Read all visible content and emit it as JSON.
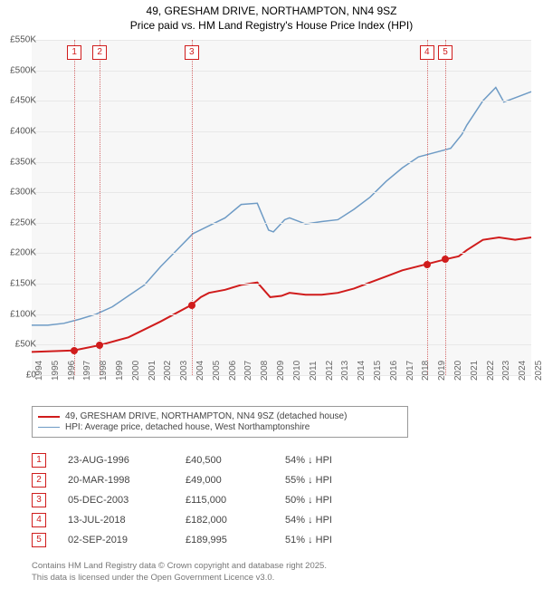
{
  "title_line1": "49, GRESHAM DRIVE, NORTHAMPTON, NN4 9SZ",
  "title_line2": "Price paid vs. HM Land Registry's House Price Index (HPI)",
  "chart": {
    "type": "line",
    "background": "#f7f7f7",
    "grid_color": "#e8e8e8",
    "ylim": [
      0,
      550000
    ],
    "ytick_step": 50000,
    "yticks_labels": [
      "£0",
      "£50K",
      "£100K",
      "£150K",
      "£200K",
      "£250K",
      "£300K",
      "£350K",
      "£400K",
      "£450K",
      "£500K",
      "£550K"
    ],
    "xlim": [
      1994,
      2025
    ],
    "xticks": [
      1994,
      1995,
      1996,
      1997,
      1998,
      1999,
      2000,
      2001,
      2002,
      2003,
      2004,
      2005,
      2006,
      2007,
      2008,
      2009,
      2010,
      2011,
      2012,
      2013,
      2014,
      2015,
      2016,
      2017,
      2018,
      2019,
      2020,
      2021,
      2022,
      2023,
      2024,
      2025
    ],
    "series": [
      {
        "name": "price_paid",
        "color": "#d01c1c",
        "width": 2,
        "points": [
          [
            1994,
            38000
          ],
          [
            1996.6,
            40500
          ],
          [
            1998.2,
            49000
          ],
          [
            2000,
            62000
          ],
          [
            2002,
            88000
          ],
          [
            2003.9,
            115000
          ],
          [
            2004.5,
            128000
          ],
          [
            2005,
            135000
          ],
          [
            2006,
            140000
          ],
          [
            2007,
            148000
          ],
          [
            2008,
            152000
          ],
          [
            2008.8,
            128000
          ],
          [
            2009.5,
            130000
          ],
          [
            2010,
            135000
          ],
          [
            2011,
            132000
          ],
          [
            2012,
            132000
          ],
          [
            2013,
            135000
          ],
          [
            2014,
            142000
          ],
          [
            2015,
            152000
          ],
          [
            2016,
            162000
          ],
          [
            2017,
            172000
          ],
          [
            2018.5,
            182000
          ],
          [
            2019.67,
            189995
          ],
          [
            2020.5,
            195000
          ],
          [
            2021,
            205000
          ],
          [
            2022,
            222000
          ],
          [
            2023,
            226000
          ],
          [
            2024,
            222000
          ],
          [
            2025,
            226000
          ]
        ]
      },
      {
        "name": "hpi",
        "color": "#6e9bc5",
        "width": 1.5,
        "points": [
          [
            1994,
            82000
          ],
          [
            1995,
            82000
          ],
          [
            1996,
            85000
          ],
          [
            1997,
            92000
          ],
          [
            1998,
            100000
          ],
          [
            1999,
            112000
          ],
          [
            2000,
            130000
          ],
          [
            2001,
            148000
          ],
          [
            2002,
            178000
          ],
          [
            2003,
            205000
          ],
          [
            2004,
            232000
          ],
          [
            2005,
            245000
          ],
          [
            2006,
            258000
          ],
          [
            2007,
            280000
          ],
          [
            2008,
            282000
          ],
          [
            2008.7,
            238000
          ],
          [
            2009,
            235000
          ],
          [
            2009.7,
            255000
          ],
          [
            2010,
            258000
          ],
          [
            2011,
            248000
          ],
          [
            2012,
            252000
          ],
          [
            2013,
            255000
          ],
          [
            2014,
            272000
          ],
          [
            2015,
            292000
          ],
          [
            2016,
            318000
          ],
          [
            2017,
            340000
          ],
          [
            2018,
            358000
          ],
          [
            2019,
            365000
          ],
          [
            2020,
            372000
          ],
          [
            2020.7,
            395000
          ],
          [
            2021,
            410000
          ],
          [
            2022,
            450000
          ],
          [
            2022.8,
            472000
          ],
          [
            2023.3,
            448000
          ],
          [
            2024,
            455000
          ],
          [
            2025,
            465000
          ]
        ]
      }
    ],
    "sale_markers": [
      {
        "n": "1",
        "year": 1996.65,
        "price": 40500
      },
      {
        "n": "2",
        "year": 1998.22,
        "price": 49000
      },
      {
        "n": "3",
        "year": 2003.93,
        "price": 115000
      },
      {
        "n": "4",
        "year": 2018.53,
        "price": 182000
      },
      {
        "n": "5",
        "year": 2019.67,
        "price": 189995
      }
    ],
    "marker_border": "#d01c1c",
    "vline_color": "#d46a6a"
  },
  "legend": {
    "items": [
      {
        "color": "#d01c1c",
        "width": 2,
        "label": "49, GRESHAM DRIVE, NORTHAMPTON, NN4 9SZ (detached house)"
      },
      {
        "color": "#6e9bc5",
        "width": 1.5,
        "label": "HPI: Average price, detached house, West Northamptonshire"
      }
    ]
  },
  "sales_table": [
    {
      "n": "1",
      "date": "23-AUG-1996",
      "price": "£40,500",
      "diff": "54% ↓ HPI"
    },
    {
      "n": "2",
      "date": "20-MAR-1998",
      "price": "£49,000",
      "diff": "55% ↓ HPI"
    },
    {
      "n": "3",
      "date": "05-DEC-2003",
      "price": "£115,000",
      "diff": "50% ↓ HPI"
    },
    {
      "n": "4",
      "date": "13-JUL-2018",
      "price": "£182,000",
      "diff": "54% ↓ HPI"
    },
    {
      "n": "5",
      "date": "02-SEP-2019",
      "price": "£189,995",
      "diff": "51% ↓ HPI"
    }
  ],
  "footer_line1": "Contains HM Land Registry data © Crown copyright and database right 2025.",
  "footer_line2": "This data is licensed under the Open Government Licence v3.0."
}
